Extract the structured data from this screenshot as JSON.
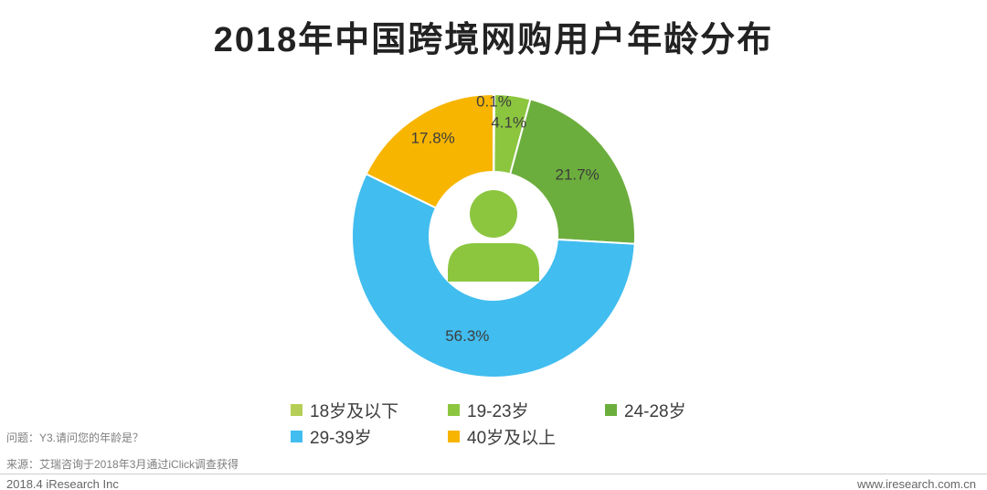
{
  "title": "2018年中国跨境网购用户年龄分布",
  "chart_data": {
    "type": "pie",
    "subtype": "donut",
    "title": "2018年中国跨境网购用户年龄分布",
    "unit": "percent",
    "direction": "clockwise",
    "start_angle_deg": 0,
    "legend_position": "bottom",
    "center_icon": "person-icon",
    "categories": [
      "18岁及以下",
      "19-23岁",
      "24-28岁",
      "29-39岁",
      "40岁及以上"
    ],
    "values": [
      0.1,
      4.1,
      21.7,
      56.3,
      17.8
    ],
    "labels": [
      "0.1%",
      "4.1%",
      "21.7%",
      "56.3%",
      "17.8%"
    ],
    "colors": [
      "#B5CF56",
      "#8CC63F",
      "#6CAE3D",
      "#41BDEF",
      "#F7B500"
    ]
  },
  "legend": {
    "items": [
      {
        "label": "18岁及以下",
        "color": "#B5CF56"
      },
      {
        "label": "19-23岁",
        "color": "#8CC63F"
      },
      {
        "label": "24-28岁",
        "color": "#6CAE3D"
      },
      {
        "label": "29-39岁",
        "color": "#41BDEF"
      },
      {
        "label": "40岁及以上",
        "color": "#F7B500"
      }
    ]
  },
  "icon_color": "#8CC63F",
  "footer": {
    "question": "问题：Y3.请问您的年龄是？",
    "source": "来源：艾瑞咨询于2018年3月通过iClick调查获得",
    "company": "2018.4 iResearch Inc",
    "website": "www.iresearch.com.cn"
  }
}
